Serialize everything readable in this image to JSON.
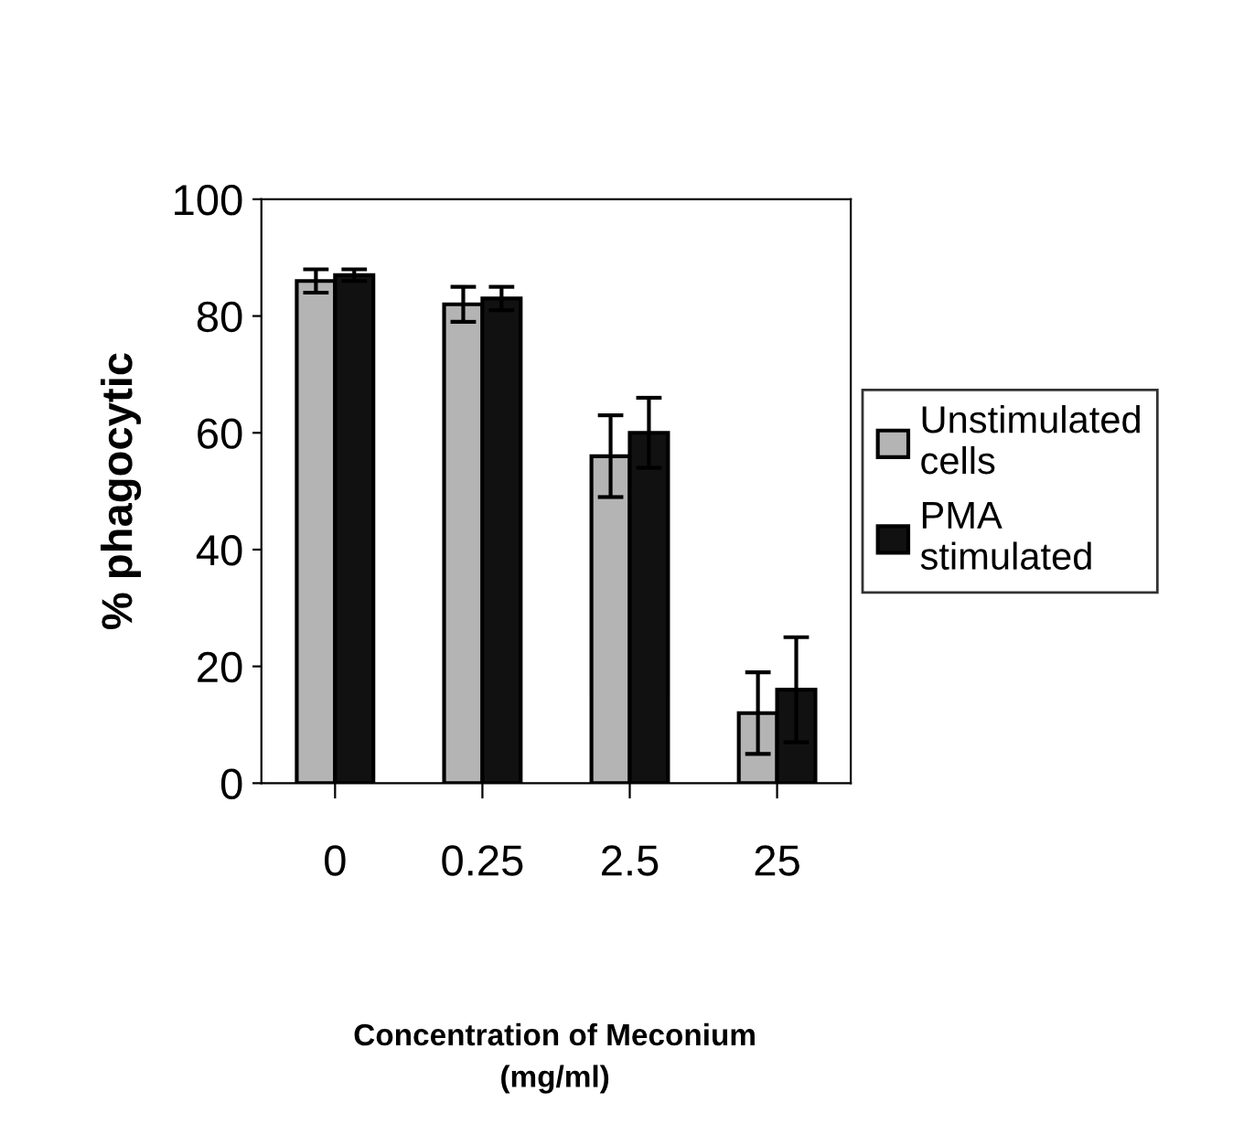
{
  "chart_data": {
    "type": "bar",
    "annotations": [
      "Concentration of Meconium\n(mg/ml)"
    ],
    "ylabel": "% phagocytic",
    "categories": [
      "0",
      "0.25",
      "2.5",
      "25"
    ],
    "series": [
      {
        "name": "Unstimulated\ncells",
        "color": "#b4b4b4",
        "values": [
          86,
          82,
          56,
          12
        ],
        "errors": [
          2,
          3,
          7,
          7
        ]
      },
      {
        "name": "PMA\nstimulated",
        "color": "#111111",
        "values": [
          87,
          83,
          60,
          16
        ],
        "errors": [
          1,
          2,
          6,
          9
        ]
      }
    ],
    "ylim": [
      0,
      100
    ],
    "yticks": [
      0,
      20,
      40,
      60,
      80,
      100
    ],
    "grid": false,
    "legend": "right"
  }
}
